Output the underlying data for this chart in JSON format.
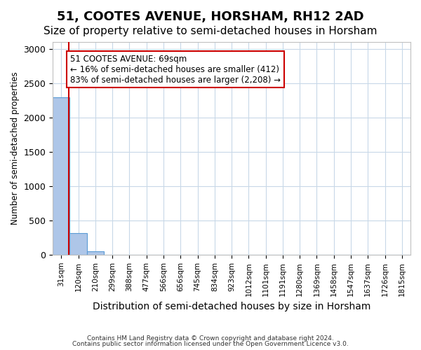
{
  "title": "51, COOTES AVENUE, HORSHAM, RH12 2AD",
  "subtitle": "Size of property relative to semi-detached houses in Horsham",
  "xlabel": "Distribution of semi-detached houses by size in Horsham",
  "ylabel": "Number of semi-detached properties",
  "categories": [
    "31sqm",
    "120sqm",
    "210sqm",
    "299sqm",
    "388sqm",
    "477sqm",
    "566sqm",
    "656sqm",
    "745sqm",
    "834sqm",
    "923sqm",
    "1012sqm",
    "1101sqm",
    "1191sqm",
    "1280sqm",
    "1369sqm",
    "1458sqm",
    "1547sqm",
    "1637sqm",
    "1726sqm",
    "1815sqm"
  ],
  "values": [
    2300,
    320,
    50,
    2,
    1,
    0,
    0,
    0,
    0,
    0,
    0,
    0,
    0,
    0,
    0,
    0,
    0,
    0,
    0,
    0,
    0
  ],
  "bar_color": "#aec6e8",
  "bar_edge_color": "#5b9bd5",
  "property_line_x": 0.43,
  "property_line_color": "#cc0000",
  "annotation_text": "51 COOTES AVENUE: 69sqm\n← 16% of semi-detached houses are smaller (412)\n83% of semi-detached houses are larger (2,208) →",
  "annotation_box_color": "#cc0000",
  "annotation_text_color": "#000000",
  "ylim": [
    0,
    3100
  ],
  "yticks": [
    0,
    500,
    1000,
    1500,
    2000,
    2500,
    3000
  ],
  "footer1": "Contains HM Land Registry data © Crown copyright and database right 2024.",
  "footer2": "Contains public sector information licensed under the Open Government Licence v3.0.",
  "bg_color": "#ffffff",
  "grid_color": "#c8d8e8",
  "title_fontsize": 13,
  "subtitle_fontsize": 11
}
